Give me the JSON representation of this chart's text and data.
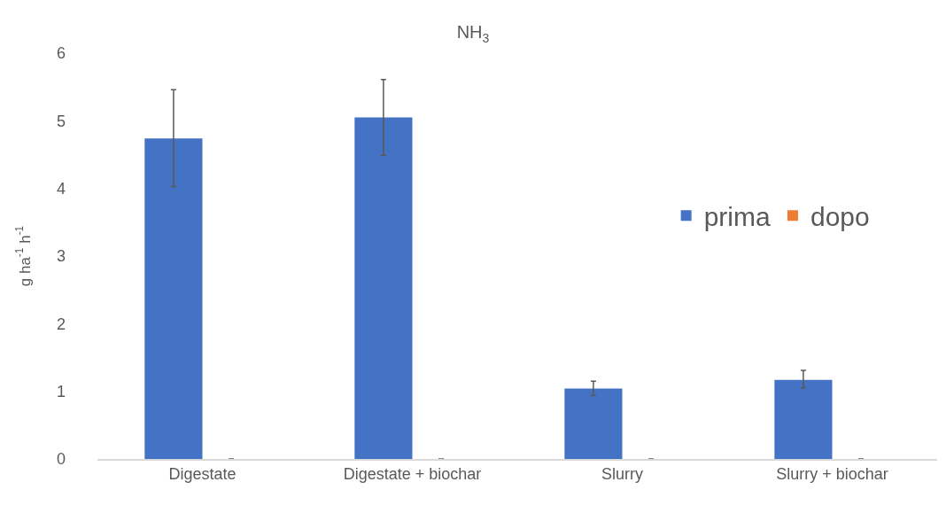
{
  "chart_data": {
    "type": "bar",
    "title": "NH$_{3}$",
    "ylabel": "g ha$^{-1}$ h$^{-1}$",
    "categories": [
      "Digestate",
      "Digestate + biochar",
      "Slurry",
      "Slurry + biochar"
    ],
    "series": [
      {
        "name": "prima",
        "color": "#4472c4",
        "values": [
          4.74,
          5.05,
          1.04,
          1.17
        ],
        "errors": [
          [
            4.03,
            5.46
          ],
          [
            4.49,
            5.61
          ],
          [
            0.94,
            1.15
          ],
          [
            1.05,
            1.31
          ]
        ]
      },
      {
        "name": "dopo",
        "color": "#ed7d31",
        "values": [
          0,
          0,
          0,
          0
        ],
        "errors": [
          0,
          null,
          null,
          null
        ]
      }
    ],
    "ylim": [
      0,
      6
    ],
    "yticks": [
      0,
      1,
      2,
      3,
      4,
      5,
      6
    ],
    "grid": false,
    "legend": "right"
  }
}
